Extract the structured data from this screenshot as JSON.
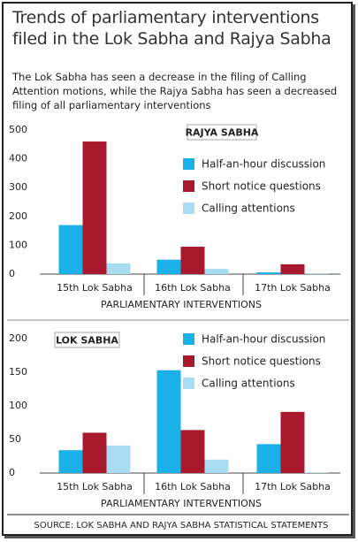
{
  "title": "Trends of parliamentary interventions filed in the Lok Sabha and Rajya Sabha",
  "subtitle": "The Lok Sabha has seen a decrease in the filing of Calling Attention motions, while the Rajya Sabha has seen a decreased filing of all parliamentary interventions",
  "source": "SOURCE: LOK SABHA AND RAJYA SABHA STATISTICAL STATEMENTS",
  "chart_data": [
    {
      "type": "bar",
      "title": "RAJYA SABHA",
      "x_label": "PARLIAMENTARY INTERVENTIONS",
      "categories": [
        "15th Lok Sabha",
        "16th Lok Sabha",
        "17th Lok Sabha"
      ],
      "series": [
        {
          "name": "Half-an-hour discussion",
          "color": "#1ab0e8",
          "values": [
            170,
            50,
            6
          ]
        },
        {
          "name": "Short notice questions",
          "color": "#a8192e",
          "values": [
            460,
            95,
            34
          ]
        },
        {
          "name": "Calling attentions",
          "color": "#a8dcf2",
          "values": [
            37,
            18,
            3
          ]
        }
      ],
      "ylim": [
        0,
        500
      ],
      "yticks": [
        0,
        100,
        200,
        300,
        400,
        500
      ],
      "legend": "upper right"
    },
    {
      "type": "bar",
      "title": "LOK SABHA",
      "x_label": "PARLIAMENTARY INTERVENTIONS",
      "categories": [
        "15th Lok Sabha",
        "16th Lok Sabha",
        "17th Lok Sabha"
      ],
      "series": [
        {
          "name": "Half-an-hour discussion",
          "color": "#1ab0e8",
          "values": [
            34,
            153,
            43
          ]
        },
        {
          "name": "Short notice questions",
          "color": "#a8192e",
          "values": [
            60,
            64,
            91
          ]
        },
        {
          "name": "Calling attentions",
          "color": "#a8dcf2",
          "values": [
            41,
            20,
            1
          ]
        }
      ],
      "ylim": [
        0,
        200
      ],
      "yticks": [
        0,
        50,
        100,
        150,
        200
      ],
      "legend": "upper right"
    }
  ]
}
